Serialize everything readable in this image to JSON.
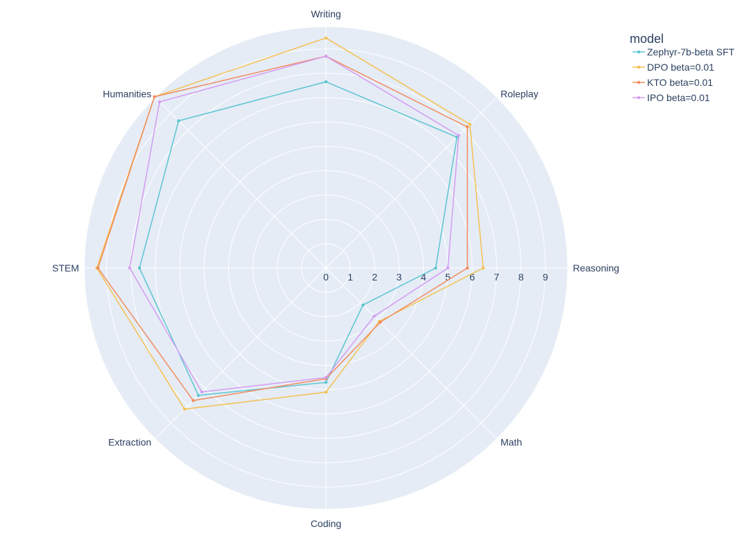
{
  "chart_data": {
    "type": "radar",
    "title": "",
    "categories": [
      "Writing",
      "Roleplay",
      "Reasoning",
      "Math",
      "Coding",
      "Extraction",
      "STEM",
      "Humanities"
    ],
    "radial_range": [
      0,
      9.9
    ],
    "radial_ticks": [
      "0",
      "1",
      "2",
      "3",
      "4",
      "5",
      "6",
      "7",
      "8",
      "9"
    ],
    "legend": {
      "title": "model",
      "position": "top-right"
    },
    "series": [
      {
        "name": "Zephyr-7b-beta SFT",
        "color": "#5bc5d0",
        "values": [
          7.65,
          7.6,
          4.5,
          2.15,
          4.7,
          7.4,
          7.65,
          8.55
        ]
      },
      {
        "name": "DPO beta=0.01",
        "color": "#f5c04f",
        "values": [
          9.45,
          8.35,
          6.45,
          3.1,
          5.1,
          8.2,
          9.4,
          9.95
        ]
      },
      {
        "name": "KTO beta=0.01",
        "color": "#f28b5e",
        "values": [
          8.7,
          8.2,
          5.8,
          3.15,
          4.55,
          7.7,
          9.35,
          9.95
        ]
      },
      {
        "name": "IPO beta=0.01",
        "color": "#d49bf2",
        "values": [
          8.7,
          7.7,
          5.0,
          2.8,
          4.5,
          7.2,
          8.05,
          9.65
        ]
      }
    ]
  }
}
